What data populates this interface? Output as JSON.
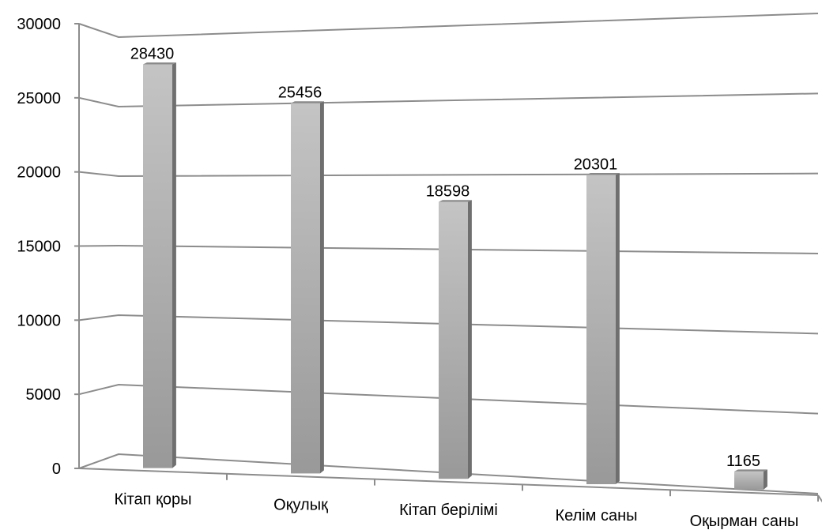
{
  "chart_data": {
    "type": "bar",
    "categories": [
      "Кітап қоры",
      "Оқулық",
      "Кітап берілімі",
      "Келім саны",
      "Оқырман саны"
    ],
    "values": [
      28430,
      25456,
      18598,
      20301,
      1165
    ],
    "data_labels": [
      "28430",
      "25456",
      "18598",
      "20301",
      "1165"
    ],
    "y_ticks": [
      "0",
      "5000",
      "10000",
      "15000",
      "20000",
      "25000",
      "30000"
    ],
    "y_tick_values": [
      0,
      5000,
      10000,
      15000,
      20000,
      25000,
      30000
    ],
    "ylim": [
      0,
      30000
    ],
    "grid": true,
    "style": "3d-perspective",
    "bar_color": "#a6a6a6"
  }
}
